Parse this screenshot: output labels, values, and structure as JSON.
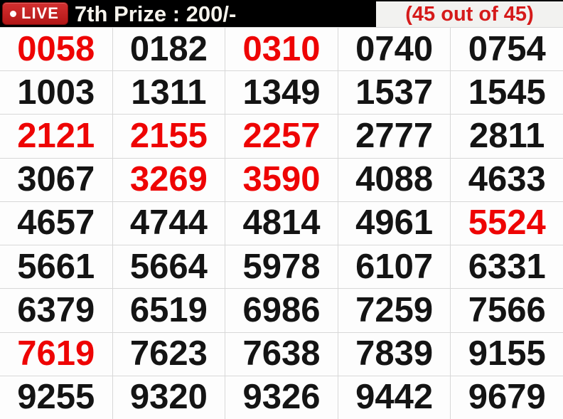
{
  "header": {
    "live_label": "LIVE",
    "title": "7th Prize : 200/-",
    "count_label": "(45 out of 45)"
  },
  "colors": {
    "header_bg": "#000000",
    "badge_red": "#c42323",
    "count_box_bg": "#f2f2f0",
    "count_text_red": "#d51a1a",
    "number_red": "#ee0404",
    "number_black": "#141414",
    "grid_line": "#d8d8d8",
    "cell_bg": "#fdfdfd"
  },
  "numbers": [
    {
      "value": "0058",
      "highlight": true
    },
    {
      "value": "0182",
      "highlight": false
    },
    {
      "value": "0310",
      "highlight": true
    },
    {
      "value": "0740",
      "highlight": false
    },
    {
      "value": "0754",
      "highlight": false
    },
    {
      "value": "1003",
      "highlight": false
    },
    {
      "value": "1311",
      "highlight": false
    },
    {
      "value": "1349",
      "highlight": false
    },
    {
      "value": "1537",
      "highlight": false
    },
    {
      "value": "1545",
      "highlight": false
    },
    {
      "value": "2121",
      "highlight": true
    },
    {
      "value": "2155",
      "highlight": true
    },
    {
      "value": "2257",
      "highlight": true
    },
    {
      "value": "2777",
      "highlight": false
    },
    {
      "value": "2811",
      "highlight": false
    },
    {
      "value": "3067",
      "highlight": false
    },
    {
      "value": "3269",
      "highlight": true
    },
    {
      "value": "3590",
      "highlight": true
    },
    {
      "value": "4088",
      "highlight": false
    },
    {
      "value": "4633",
      "highlight": false
    },
    {
      "value": "4657",
      "highlight": false
    },
    {
      "value": "4744",
      "highlight": false
    },
    {
      "value": "4814",
      "highlight": false
    },
    {
      "value": "4961",
      "highlight": false
    },
    {
      "value": "5524",
      "highlight": true
    },
    {
      "value": "5661",
      "highlight": false
    },
    {
      "value": "5664",
      "highlight": false
    },
    {
      "value": "5978",
      "highlight": false
    },
    {
      "value": "6107",
      "highlight": false
    },
    {
      "value": "6331",
      "highlight": false
    },
    {
      "value": "6379",
      "highlight": false
    },
    {
      "value": "6519",
      "highlight": false
    },
    {
      "value": "6986",
      "highlight": false
    },
    {
      "value": "7259",
      "highlight": false
    },
    {
      "value": "7566",
      "highlight": false
    },
    {
      "value": "7619",
      "highlight": true
    },
    {
      "value": "7623",
      "highlight": false
    },
    {
      "value": "7638",
      "highlight": false
    },
    {
      "value": "7839",
      "highlight": false
    },
    {
      "value": "9155",
      "highlight": false
    },
    {
      "value": "9255",
      "highlight": false
    },
    {
      "value": "9320",
      "highlight": false
    },
    {
      "value": "9326",
      "highlight": false
    },
    {
      "value": "9442",
      "highlight": false
    },
    {
      "value": "9679",
      "highlight": false
    }
  ]
}
